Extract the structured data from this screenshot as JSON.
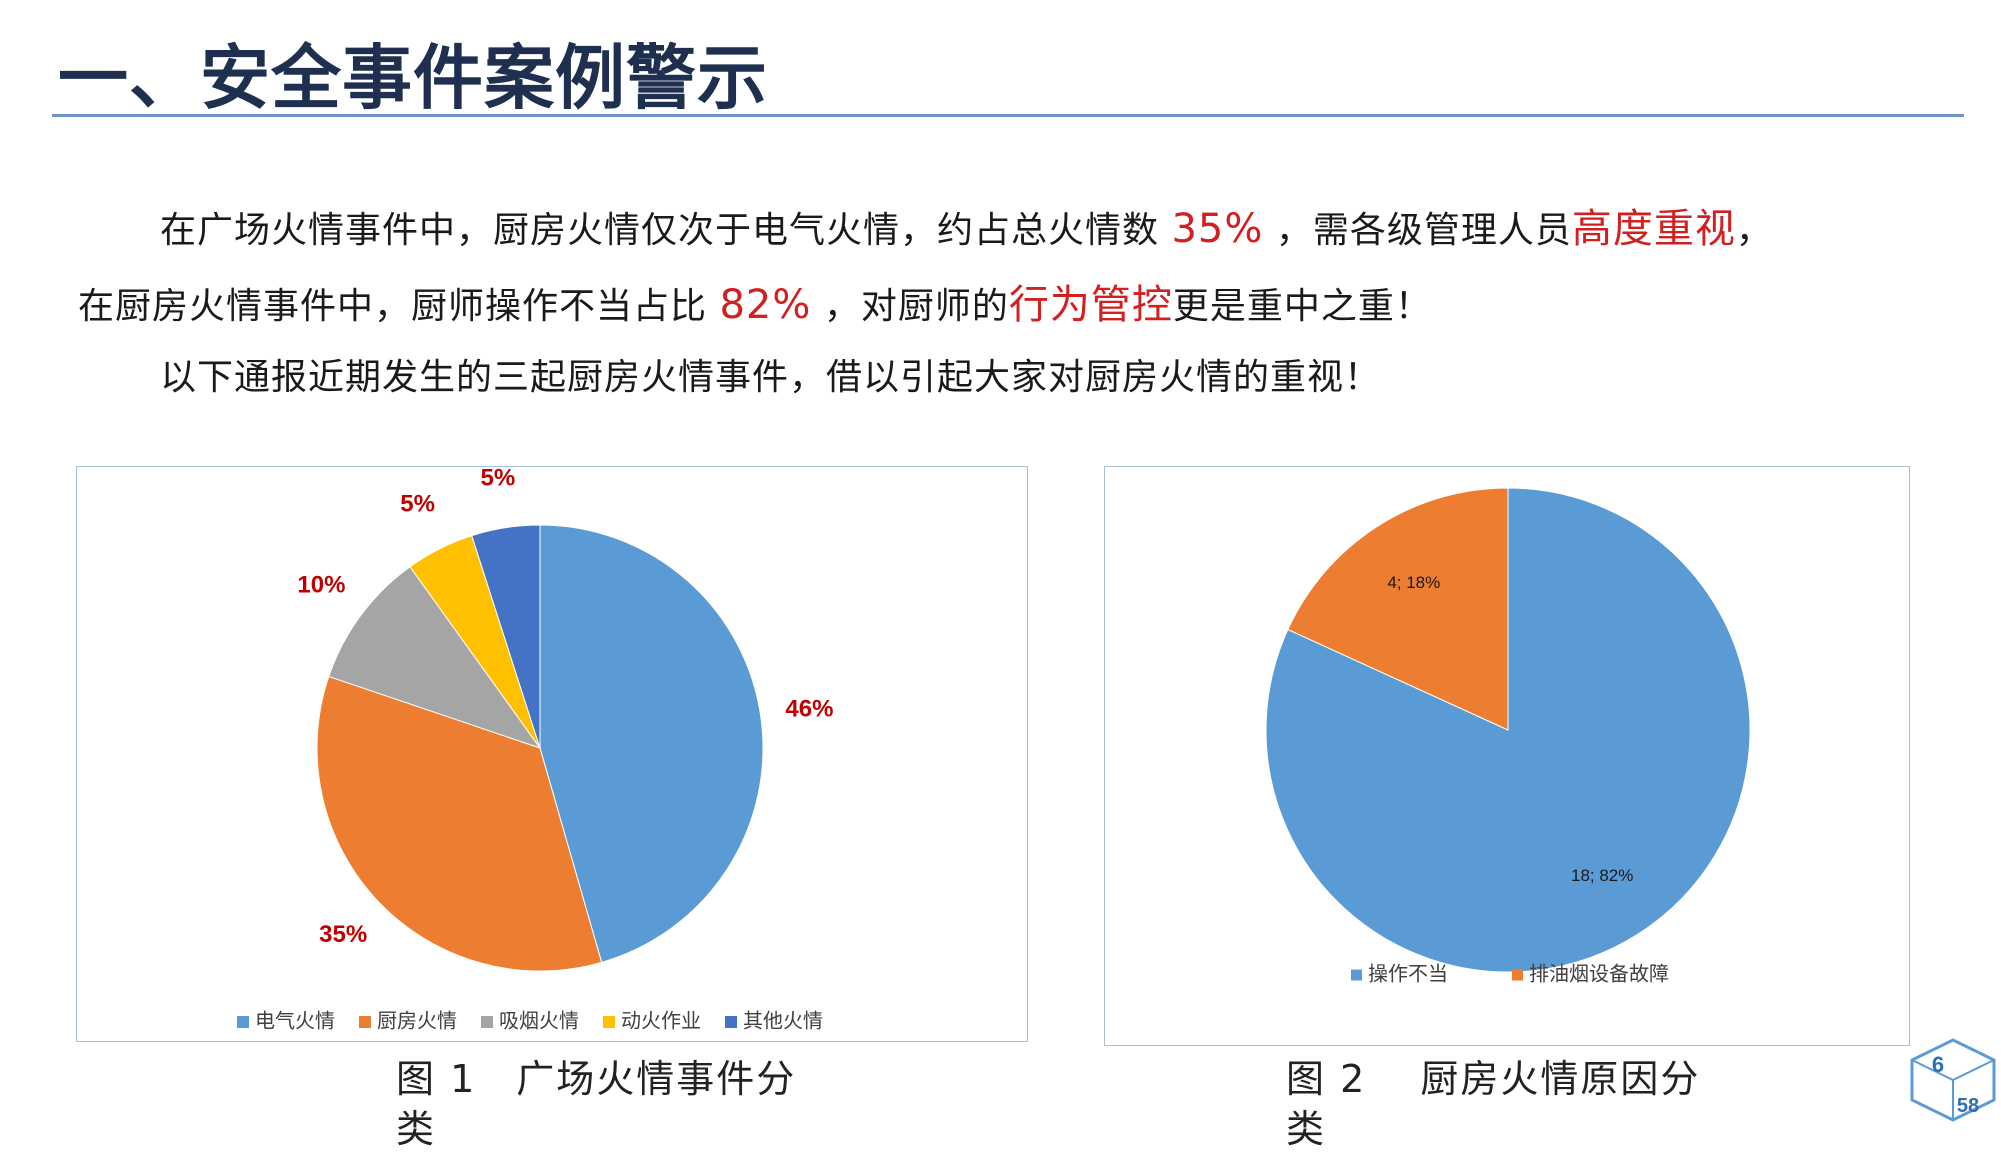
{
  "title": "一、安全事件案例警示",
  "paragraphs": {
    "p1": {
      "a": "在广场火情事件中，厨房火情仅次于电气火情，约占总火情数",
      "pct": "35%",
      "b": "，需各级管理人员",
      "emph": "高度重视",
      "c": "，"
    },
    "p2": {
      "a": "在厨房火情事件中，厨师操作不当占比",
      "pct": "82%",
      "b": "，对厨师的",
      "emph": "行为管控",
      "c": "更是重中之重！"
    },
    "p3": "以下通报近期发生的三起厨房火情事件，借以引起大家对厨房火情的重视！"
  },
  "captions": {
    "fig1": "图 1　广场火情事件分类",
    "fig2": "图 2　 厨房火情原因分类"
  },
  "page_badge": {
    "current": "6",
    "total": "58"
  },
  "colors": {
    "blue": "#5b9bd5",
    "orange": "#ed7d31",
    "gray": "#a5a5a5",
    "yellow": "#ffc000",
    "darkblue": "#4472c4",
    "label_red": "#c00000"
  },
  "chart_data": [
    {
      "type": "pie",
      "categories": [
        "电气火情",
        "厨房火情",
        "吸烟火情",
        "动火作业",
        "其他火情"
      ],
      "values": [
        46,
        35,
        10,
        5,
        5
      ],
      "labels": [
        "46%",
        "35%",
        "10%",
        "5%",
        "5%"
      ],
      "colors": [
        "#5b9bd5",
        "#ed7d31",
        "#a5a5a5",
        "#ffc000",
        "#4472c4"
      ],
      "start_angle": 0,
      "legend": "bottom"
    },
    {
      "type": "pie",
      "categories": [
        "操作不当",
        "排油烟设备故障"
      ],
      "values": [
        18,
        4
      ],
      "labels": [
        "18; 82%",
        "4; 18%"
      ],
      "colors": [
        "#5b9bd5",
        "#ed7d31"
      ],
      "start_angle": 0,
      "legend": "bottom"
    }
  ]
}
